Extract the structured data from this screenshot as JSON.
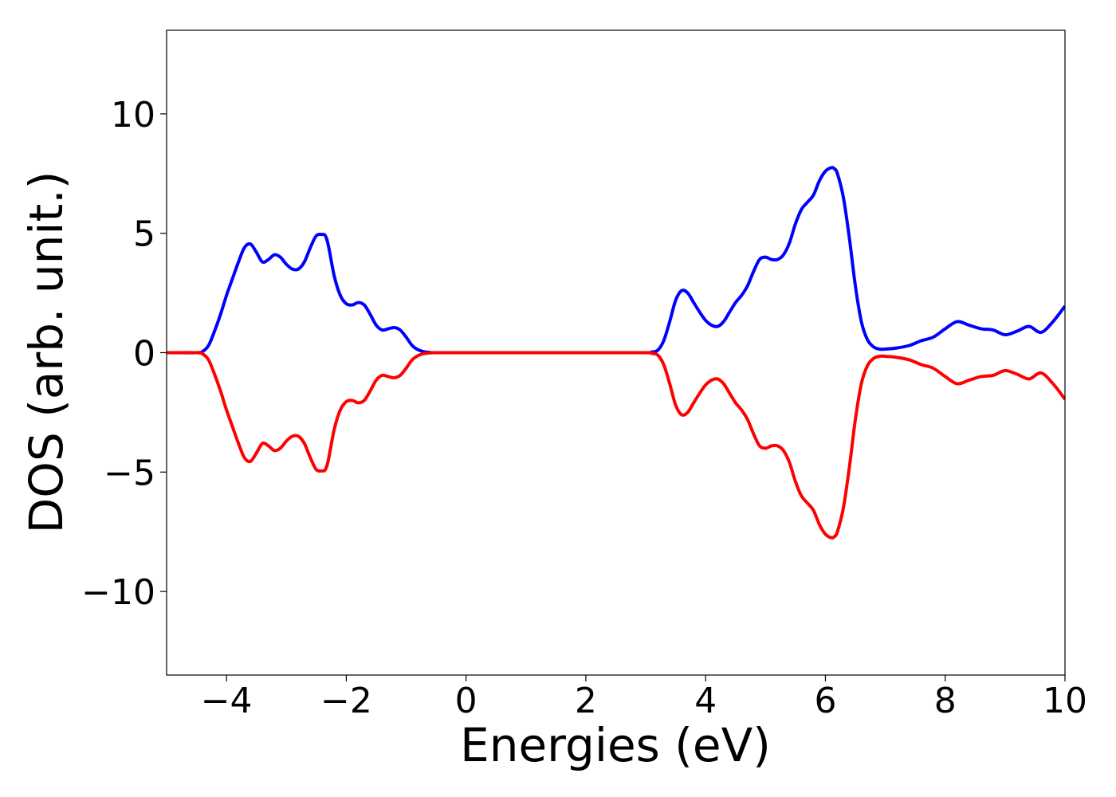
{
  "chart_data": {
    "type": "line",
    "title": "",
    "xlabel": "Energies (eV)",
    "ylabel": "DOS (arb. unit.)",
    "xlim": [
      -5,
      10
    ],
    "ylim": [
      -13.5,
      13.5
    ],
    "xticks": [
      -4,
      -2,
      0,
      2,
      4,
      6,
      8,
      10
    ],
    "xtick_labels": [
      "−4",
      "−2",
      "0",
      "2",
      "4",
      "6",
      "8",
      "10"
    ],
    "yticks": [
      -10,
      -5,
      0,
      5,
      10
    ],
    "ytick_labels": [
      "−10",
      "−5",
      "0",
      "5",
      "10"
    ],
    "grid": false,
    "legend": "none",
    "series": [
      {
        "color": "#0000ff",
        "x": [
          -5,
          -4.5,
          -4.4,
          -4.3,
          -4.2,
          -4.1,
          -4.0,
          -3.9,
          -3.8,
          -3.7,
          -3.6,
          -3.5,
          -3.4,
          -3.3,
          -3.2,
          -3.1,
          -3.0,
          -2.9,
          -2.8,
          -2.7,
          -2.6,
          -2.5,
          -2.4,
          -2.35,
          -2.3,
          -2.2,
          -2.1,
          -2.0,
          -1.9,
          -1.8,
          -1.7,
          -1.6,
          -1.5,
          -1.4,
          -1.3,
          -1.2,
          -1.1,
          -1.0,
          -0.9,
          -0.8,
          -0.7,
          -0.6,
          -0.5,
          0,
          1,
          2,
          3.0,
          3.1,
          3.2,
          3.3,
          3.4,
          3.5,
          3.6,
          3.7,
          3.8,
          3.9,
          4.0,
          4.1,
          4.2,
          4.3,
          4.4,
          4.5,
          4.6,
          4.7,
          4.8,
          4.9,
          5.0,
          5.1,
          5.2,
          5.3,
          5.4,
          5.5,
          5.6,
          5.7,
          5.8,
          5.9,
          6.0,
          6.1,
          6.15,
          6.2,
          6.3,
          6.4,
          6.5,
          6.6,
          6.7,
          6.8,
          6.9,
          7.0,
          7.2,
          7.4,
          7.6,
          7.8,
          8.0,
          8.2,
          8.4,
          8.6,
          8.8,
          9.0,
          9.2,
          9.4,
          9.6,
          9.8,
          10.0
        ],
        "y": [
          0,
          0,
          0.05,
          0.3,
          0.9,
          1.6,
          2.4,
          3.1,
          3.8,
          4.4,
          4.55,
          4.2,
          3.8,
          3.9,
          4.1,
          4.0,
          3.7,
          3.5,
          3.5,
          3.8,
          4.4,
          4.9,
          4.95,
          4.9,
          4.5,
          3.2,
          2.4,
          2.05,
          2.0,
          2.1,
          2.0,
          1.6,
          1.15,
          0.95,
          1.0,
          1.05,
          0.95,
          0.65,
          0.3,
          0.12,
          0.04,
          0.01,
          0,
          0,
          0,
          0,
          0,
          0.03,
          0.1,
          0.5,
          1.3,
          2.2,
          2.6,
          2.5,
          2.1,
          1.7,
          1.35,
          1.15,
          1.1,
          1.3,
          1.7,
          2.1,
          2.4,
          2.8,
          3.4,
          3.9,
          4.0,
          3.9,
          3.9,
          4.1,
          4.6,
          5.4,
          6.0,
          6.3,
          6.6,
          7.2,
          7.6,
          7.75,
          7.7,
          7.5,
          6.5,
          4.8,
          2.8,
          1.3,
          0.55,
          0.25,
          0.15,
          0.15,
          0.2,
          0.3,
          0.5,
          0.65,
          1.0,
          1.3,
          1.15,
          1.0,
          0.95,
          0.75,
          0.9,
          1.1,
          0.85,
          1.3,
          1.95
        ]
      },
      {
        "color": "#ff0000",
        "x": [
          -5,
          -4.5,
          -4.4,
          -4.3,
          -4.2,
          -4.1,
          -4.0,
          -3.9,
          -3.8,
          -3.7,
          -3.6,
          -3.5,
          -3.4,
          -3.3,
          -3.2,
          -3.1,
          -3.0,
          -2.9,
          -2.8,
          -2.7,
          -2.6,
          -2.5,
          -2.4,
          -2.35,
          -2.3,
          -2.2,
          -2.1,
          -2.0,
          -1.9,
          -1.8,
          -1.7,
          -1.6,
          -1.5,
          -1.4,
          -1.3,
          -1.2,
          -1.1,
          -1.0,
          -0.9,
          -0.8,
          -0.7,
          -0.6,
          -0.5,
          0,
          1,
          2,
          3.0,
          3.1,
          3.2,
          3.3,
          3.4,
          3.5,
          3.6,
          3.7,
          3.8,
          3.9,
          4.0,
          4.1,
          4.2,
          4.3,
          4.4,
          4.5,
          4.6,
          4.7,
          4.8,
          4.9,
          5.0,
          5.1,
          5.2,
          5.3,
          5.4,
          5.5,
          5.6,
          5.7,
          5.8,
          5.9,
          6.0,
          6.1,
          6.15,
          6.2,
          6.3,
          6.4,
          6.5,
          6.6,
          6.7,
          6.8,
          6.9,
          7.0,
          7.2,
          7.4,
          7.6,
          7.8,
          8.0,
          8.2,
          8.4,
          8.6,
          8.8,
          9.0,
          9.2,
          9.4,
          9.6,
          9.8,
          10.0
        ],
        "y": [
          0,
          0,
          -0.05,
          -0.3,
          -0.9,
          -1.6,
          -2.4,
          -3.1,
          -3.8,
          -4.4,
          -4.55,
          -4.2,
          -3.8,
          -3.9,
          -4.1,
          -4.0,
          -3.7,
          -3.5,
          -3.5,
          -3.8,
          -4.4,
          -4.9,
          -4.95,
          -4.9,
          -4.5,
          -3.2,
          -2.4,
          -2.05,
          -2.0,
          -2.1,
          -2.0,
          -1.6,
          -1.15,
          -0.95,
          -1.0,
          -1.05,
          -0.95,
          -0.65,
          -0.3,
          -0.12,
          -0.04,
          -0.01,
          0,
          0,
          0,
          0,
          0,
          -0.03,
          -0.1,
          -0.5,
          -1.3,
          -2.2,
          -2.6,
          -2.5,
          -2.1,
          -1.7,
          -1.35,
          -1.15,
          -1.1,
          -1.3,
          -1.7,
          -2.1,
          -2.4,
          -2.8,
          -3.4,
          -3.9,
          -4.0,
          -3.9,
          -3.9,
          -4.1,
          -4.6,
          -5.4,
          -6.0,
          -6.3,
          -6.6,
          -7.2,
          -7.6,
          -7.75,
          -7.7,
          -7.5,
          -6.5,
          -4.8,
          -2.8,
          -1.3,
          -0.55,
          -0.25,
          -0.15,
          -0.15,
          -0.2,
          -0.3,
          -0.5,
          -0.65,
          -1.0,
          -1.3,
          -1.15,
          -1.0,
          -0.95,
          -0.75,
          -0.9,
          -1.1,
          -0.85,
          -1.3,
          -1.95
        ]
      }
    ]
  }
}
